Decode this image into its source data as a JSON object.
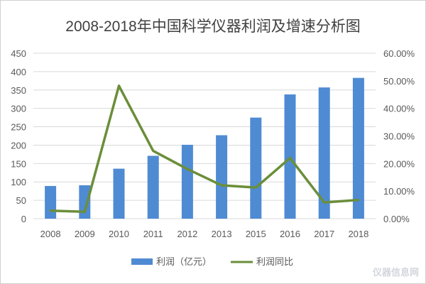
{
  "chart_data": {
    "type": "bar+line",
    "title": "2008-2018年中国科学仪器利润及增速分析图",
    "categories": [
      "2008",
      "2009",
      "2010",
      "2011",
      "2012",
      "2013",
      "2015",
      "2016",
      "2017",
      "2018"
    ],
    "series": [
      {
        "name": "利润（亿元）",
        "type": "bar",
        "axis": "left",
        "color": "#4f8bd3",
        "values": [
          89,
          91,
          136,
          171,
          201,
          227,
          275,
          338,
          357,
          383
        ]
      },
      {
        "name": "利润同比",
        "type": "line",
        "axis": "right",
        "color": "#6b8e3a",
        "values": [
          2.9,
          2.5,
          48.2,
          24.6,
          18.0,
          12.1,
          11.3,
          22.0,
          5.9,
          6.8
        ]
      }
    ],
    "y_left": {
      "min": 0,
      "max": 450,
      "step": 50,
      "ticks": [
        "0",
        "50",
        "100",
        "150",
        "200",
        "250",
        "300",
        "350",
        "400",
        "450"
      ]
    },
    "y_right": {
      "min": 0,
      "max": 60,
      "step": 10,
      "ticks": [
        "0.00%",
        "10.00%",
        "20.00%",
        "30.00%",
        "40.00%",
        "50.00%",
        "60.00%"
      ]
    },
    "grid": true,
    "legend": "bottom"
  },
  "watermark": "仪器信息网"
}
